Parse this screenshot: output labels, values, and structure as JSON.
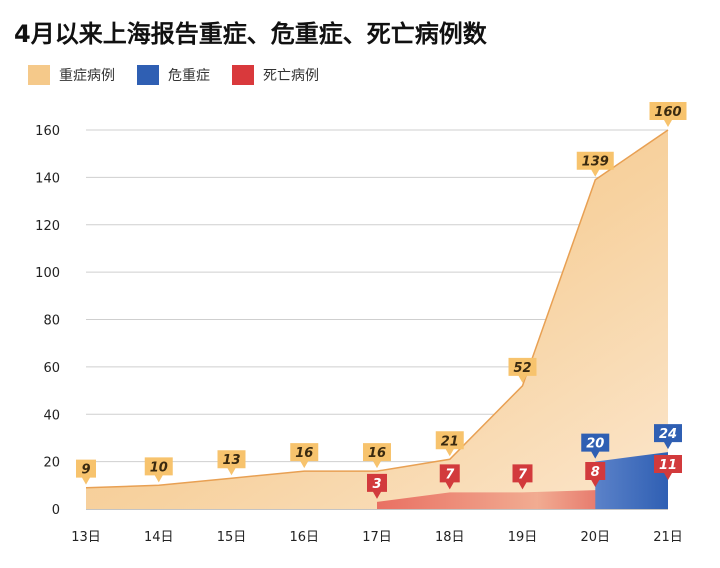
{
  "title": "4月以来上海报告重症、危重症、死亡病例数",
  "legend": [
    {
      "label": "重症病例",
      "color": "#f5c98a"
    },
    {
      "label": "危重症",
      "color": "#2f5fb3"
    },
    {
      "label": "死亡病例",
      "color": "#d9393c"
    }
  ],
  "chart_data": {
    "type": "area",
    "title": "4月以来上海报告重症、危重症、死亡病例数",
    "categories": [
      "13日",
      "14日",
      "15日",
      "16日",
      "17日",
      "18日",
      "19日",
      "20日",
      "21日"
    ],
    "ylim": [
      0,
      160
    ],
    "yticks": [
      0,
      20,
      40,
      60,
      80,
      100,
      120,
      140,
      160
    ],
    "grid": true,
    "legend_position": "top-left",
    "series": [
      {
        "name": "重症病例",
        "color": "#f5c98a",
        "flag_color": "#f7c36d",
        "text_color": "#3a2a10",
        "values": [
          9,
          10,
          13,
          16,
          16,
          21,
          52,
          139,
          160
        ]
      },
      {
        "name": "危重症",
        "color": "#2f5fb3",
        "flag_color": "#2f5fb3",
        "text_color": "#ffffff",
        "values": [
          null,
          null,
          null,
          null,
          null,
          null,
          null,
          20,
          24
        ]
      },
      {
        "name": "死亡病例",
        "color": "#d9393c",
        "flag_color": "#d23a3c",
        "text_color": "#ffffff",
        "values": [
          null,
          null,
          null,
          null,
          3,
          7,
          7,
          8,
          11
        ]
      }
    ]
  }
}
